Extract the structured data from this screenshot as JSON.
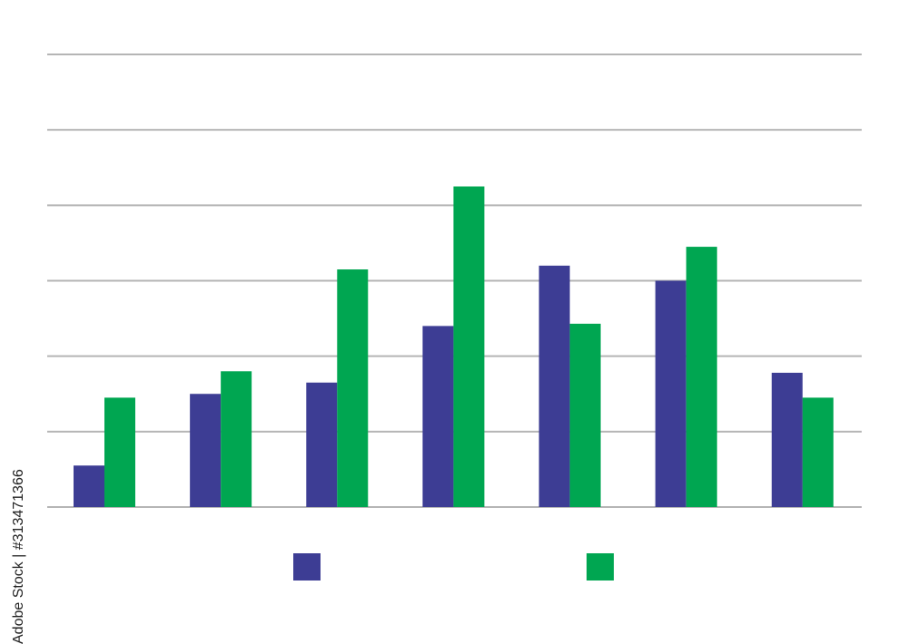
{
  "chart_data": {
    "type": "bar",
    "categories": [
      "",
      "",
      "",
      "",
      "",
      "",
      ""
    ],
    "series": [
      {
        "color": "#3d3d94",
        "values": [
          0.55,
          1.5,
          1.65,
          2.4,
          3.2,
          3.0,
          1.78
        ]
      },
      {
        "color": "#00a651",
        "values": [
          1.45,
          1.8,
          3.15,
          4.25,
          2.43,
          3.45,
          1.45
        ]
      }
    ],
    "ylim": [
      0,
      6
    ],
    "yticks": [
      0,
      1,
      2,
      3,
      4,
      5,
      6
    ],
    "grid": true,
    "gridColor": "#b5b5b5",
    "legend": "bottom-center"
  },
  "watermark": {
    "text": "Adobe Stock | #313471366"
  }
}
